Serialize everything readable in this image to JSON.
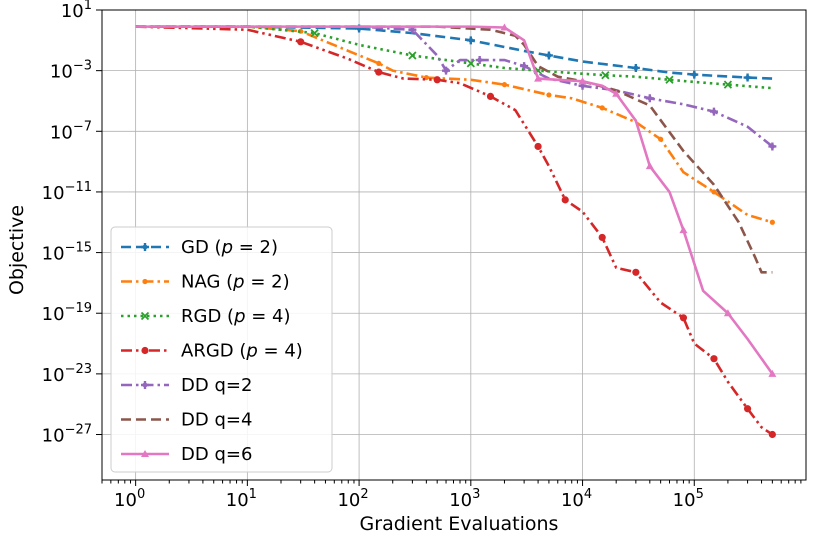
{
  "chart_data": {
    "type": "line",
    "xlabel": "Gradient Evaluations",
    "ylabel": "Objective",
    "xscale": "log",
    "yscale": "log",
    "xlim": [
      0.5,
      1000000
    ],
    "ylim": [
      1e-30,
      10
    ],
    "grid": true,
    "legend_position": "lower-left",
    "x_ticks": [
      {
        "base": "10",
        "exp": "0"
      },
      {
        "base": "10",
        "exp": "1"
      },
      {
        "base": "10",
        "exp": "2"
      },
      {
        "base": "10",
        "exp": "3"
      },
      {
        "base": "10",
        "exp": "4"
      },
      {
        "base": "10",
        "exp": "5"
      }
    ],
    "y_ticks": [
      {
        "base": "10",
        "exp": "1"
      },
      {
        "base": "10",
        "exp": "−3"
      },
      {
        "base": "10",
        "exp": "−7"
      },
      {
        "base": "10",
        "exp": "−11"
      },
      {
        "base": "10",
        "exp": "−15"
      },
      {
        "base": "10",
        "exp": "−19"
      },
      {
        "base": "10",
        "exp": "−23"
      },
      {
        "base": "10",
        "exp": "−27"
      }
    ],
    "series": [
      {
        "name": "GD (p = 2)",
        "legend": {
          "pre": "GD (",
          "var": "p",
          "post": " = 2)"
        },
        "color": "#1f77b4",
        "dash": "dashed",
        "marker": "plus",
        "points": [
          [
            1,
            0.8
          ],
          [
            10,
            0.8
          ],
          [
            100,
            0.6
          ],
          [
            300,
            0.3
          ],
          [
            1000,
            0.1
          ],
          [
            3000,
            0.02
          ],
          [
            5000,
            0.01
          ],
          [
            10000,
            0.004
          ],
          [
            30000,
            0.0015
          ],
          [
            60000,
            0.00075
          ],
          [
            100000,
            0.00055
          ],
          [
            160000,
            0.00045
          ],
          [
            300000,
            0.00035
          ],
          [
            500000,
            0.0003
          ]
        ]
      },
      {
        "name": "NAG (p = 2)",
        "legend": {
          "pre": "NAG (",
          "var": "p",
          "post": " = 2)"
        },
        "color": "#ff7f0e",
        "dash": "dashdot",
        "marker": "star",
        "points": [
          [
            1,
            0.8
          ],
          [
            10,
            0.8
          ],
          [
            30,
            0.4
          ],
          [
            80,
            0.02
          ],
          [
            150,
            0.003
          ],
          [
            200,
            0.001
          ],
          [
            400,
            0.00035
          ],
          [
            1000,
            0.00025
          ],
          [
            2000,
            0.00012
          ],
          [
            3000,
            6e-05
          ],
          [
            5000,
            2.5e-05
          ],
          [
            8000,
            1.5e-05
          ],
          [
            15000,
            3.5e-06
          ],
          [
            30000,
            4e-07
          ],
          [
            50000,
            3e-08
          ],
          [
            80000,
            2e-10
          ],
          [
            150000,
            1e-11
          ],
          [
            300000,
            3e-13
          ],
          [
            500000,
            1e-13
          ]
        ]
      },
      {
        "name": "RGD (p = 4)",
        "legend": {
          "pre": "RGD (",
          "var": "p",
          "post": " = 4)"
        },
        "color": "#2ca02c",
        "dash": "dotted",
        "marker": "x",
        "points": [
          [
            1,
            0.8
          ],
          [
            10,
            0.8
          ],
          [
            40,
            0.3
          ],
          [
            100,
            0.05
          ],
          [
            300,
            0.01
          ],
          [
            600,
            0.005
          ],
          [
            1000,
            0.003
          ],
          [
            2000,
            0.0015
          ],
          [
            4000,
            0.001
          ],
          [
            8000,
            0.0007
          ],
          [
            16000,
            0.0005
          ],
          [
            30000,
            0.0004
          ],
          [
            60000,
            0.00025
          ],
          [
            100000,
            0.00018
          ],
          [
            200000,
            0.00012
          ],
          [
            500000,
            7e-05
          ]
        ]
      },
      {
        "name": "ARGD (p = 4)",
        "legend": {
          "pre": "ARGD (",
          "var": "p",
          "post": " = 4)"
        },
        "color": "#d62728",
        "dash": "dashdotdot",
        "marker": "dot",
        "points": [
          [
            1,
            0.8
          ],
          [
            10,
            0.5
          ],
          [
            30,
            0.08
          ],
          [
            80,
            0.006
          ],
          [
            150,
            0.0008
          ],
          [
            250,
            0.0003
          ],
          [
            500,
            0.00025
          ],
          [
            800,
            0.00015
          ],
          [
            1500,
            2e-05
          ],
          [
            2500,
            2.5e-06
          ],
          [
            4000,
            1e-08
          ],
          [
            5000,
            5e-10
          ],
          [
            7000,
            3e-12
          ],
          [
            10000,
            5e-13
          ],
          [
            15000,
            1e-14
          ],
          [
            20000,
            1e-16
          ],
          [
            30000,
            5e-17
          ],
          [
            50000,
            5e-19
          ],
          [
            80000,
            5e-20
          ],
          [
            100000,
            1e-21
          ],
          [
            150000,
            1e-22
          ],
          [
            200000,
            3e-24
          ],
          [
            300000,
            5e-26
          ],
          [
            400000,
            3e-27
          ],
          [
            500000,
            1e-27
          ]
        ]
      },
      {
        "name": "DD q=2",
        "legend": {
          "pre": "DD q=2",
          "var": "",
          "post": ""
        },
        "color": "#9467bd",
        "dash": "dashdot",
        "marker": "plus",
        "points": [
          [
            1,
            0.8
          ],
          [
            100,
            0.8
          ],
          [
            300,
            0.5
          ],
          [
            500,
            0.01
          ],
          [
            600,
            0.001
          ],
          [
            800,
            0.005
          ],
          [
            1200,
            0.005
          ],
          [
            2000,
            0.005
          ],
          [
            3000,
            0.002
          ],
          [
            5000,
            0.0003
          ],
          [
            10000,
            0.0001
          ],
          [
            20000,
            5e-05
          ],
          [
            40000,
            1.5e-05
          ],
          [
            80000,
            6e-06
          ],
          [
            150000,
            2e-06
          ],
          [
            300000,
            2e-07
          ],
          [
            500000,
            1e-08
          ]
        ]
      },
      {
        "name": "DD q=4",
        "legend": {
          "pre": "DD q=4",
          "var": "",
          "post": ""
        },
        "color": "#8c564b",
        "dash": "dashed",
        "marker": "none",
        "points": [
          [
            1,
            0.8
          ],
          [
            500,
            0.8
          ],
          [
            1500,
            0.5
          ],
          [
            2500,
            0.2
          ],
          [
            3000,
            0.05
          ],
          [
            4000,
            0.002
          ],
          [
            6000,
            0.0004
          ],
          [
            10000,
            0.0002
          ],
          [
            20000,
            5e-05
          ],
          [
            40000,
            5e-06
          ],
          [
            80000,
            5e-09
          ],
          [
            150000,
            3e-11
          ],
          [
            250000,
            1e-13
          ],
          [
            350000,
            5e-16
          ],
          [
            400000,
            5e-17
          ],
          [
            500000,
            5e-17
          ]
        ]
      },
      {
        "name": "DD q=6",
        "legend": {
          "pre": "DD q=6",
          "var": "",
          "post": ""
        },
        "color": "#e377c2",
        "dash": "solid",
        "marker": "tri",
        "points": [
          [
            1,
            0.8
          ],
          [
            1000,
            0.8
          ],
          [
            2000,
            0.7
          ],
          [
            3000,
            0.1
          ],
          [
            4000,
            0.0003
          ],
          [
            6000,
            0.00025
          ],
          [
            10000,
            0.0002
          ],
          [
            15000,
            0.0001
          ],
          [
            20000,
            3e-05
          ],
          [
            30000,
            5e-07
          ],
          [
            40000,
            5e-10
          ],
          [
            60000,
            1e-11
          ],
          [
            80000,
            3e-14
          ],
          [
            120000,
            3e-18
          ],
          [
            200000,
            1e-19
          ],
          [
            300000,
            2e-21
          ],
          [
            500000,
            1e-23
          ]
        ]
      }
    ]
  }
}
